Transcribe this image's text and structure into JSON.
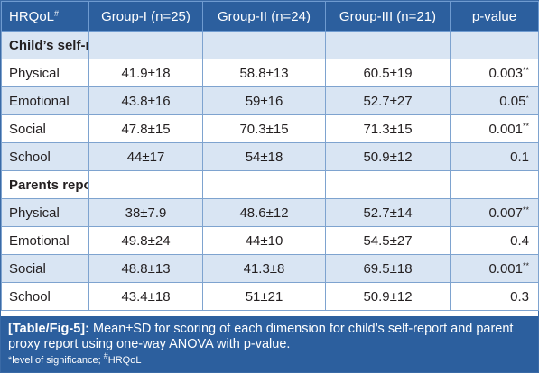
{
  "table": {
    "headers": {
      "c0": "HRQoL",
      "c0_sup": "#",
      "c1": "Group-I (n=25)",
      "c2": "Group-II (n=24)",
      "c3": "Group-III (n=21)",
      "c4": "p-value"
    },
    "sections": [
      {
        "title": "Child’s self-report",
        "rows": [
          {
            "label": "Physical",
            "g1": "41.9±18",
            "g2": "58.8±13",
            "g3": "60.5±19",
            "p": "0.003",
            "sig": "**"
          },
          {
            "label": "Emotional",
            "g1": "43.8±16",
            "g2": "59±16",
            "g3": "52.7±27",
            "p": "0.05",
            "sig": "*"
          },
          {
            "label": "Social",
            "g1": "47.8±15",
            "g2": "70.3±15",
            "g3": "71.3±15",
            "p": "0.001",
            "sig": "**"
          },
          {
            "label": "School",
            "g1": "44±17",
            "g2": "54±18",
            "g3": "50.9±12",
            "p": "0.1",
            "sig": ""
          }
        ]
      },
      {
        "title": "Parents report",
        "rows": [
          {
            "label": "Physical",
            "g1": "38±7.9",
            "g2": "48.6±12",
            "g3": "52.7±14",
            "p": "0.007",
            "sig": "**"
          },
          {
            "label": "Emotional",
            "g1": "49.8±24",
            "g2": "44±10",
            "g3": "54.5±27",
            "p": "0.4",
            "sig": ""
          },
          {
            "label": "Social",
            "g1": "48.8±13",
            "g2": "41.3±8",
            "g3": "69.5±18",
            "p": "0.001",
            "sig": "**"
          },
          {
            "label": "School",
            "g1": "43.4±18",
            "g2": "51±21",
            "g3": "50.9±12",
            "p": "0.3",
            "sig": ""
          }
        ]
      }
    ]
  },
  "caption": {
    "tag": "[Table/Fig-5]:",
    "text": "Mean±SD for scoring of each dimension for child’s self-report and parent proxy report using one-way ANOVA with p-value.",
    "note_prefix": "*level of significance; ",
    "note_sup": "#",
    "note_suffix": "HRQoL"
  },
  "colors": {
    "header_bg": "#2c5f9e",
    "shaded_row": "#d9e5f3",
    "border": "#7ea3cf"
  }
}
